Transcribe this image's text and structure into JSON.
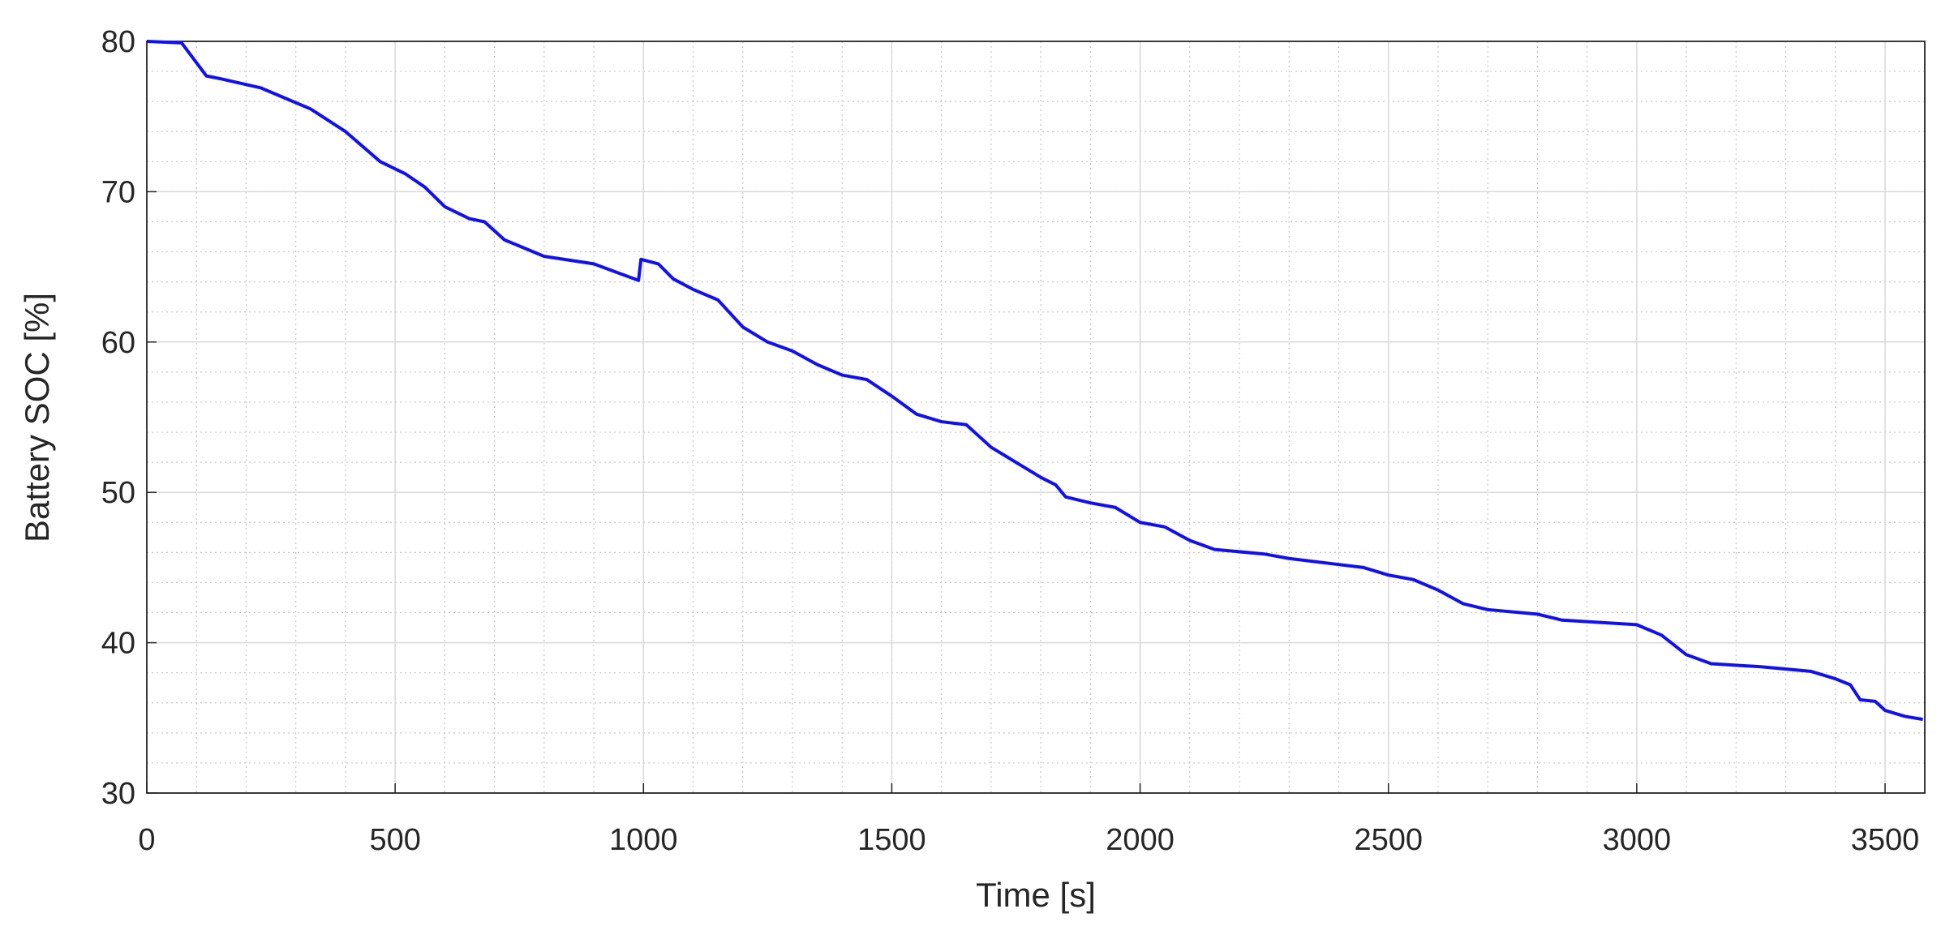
{
  "chart_data": {
    "type": "line",
    "x_label": "Time [s]",
    "y_label": "Battery SOC [%]",
    "x": [
      0,
      70,
      120,
      150,
      230,
      330,
      400,
      470,
      520,
      560,
      600,
      650,
      680,
      720,
      800,
      900,
      990,
      995,
      1030,
      1060,
      1100,
      1150,
      1200,
      1250,
      1300,
      1350,
      1400,
      1450,
      1500,
      1550,
      1600,
      1650,
      1700,
      1750,
      1800,
      1830,
      1850,
      1900,
      1950,
      2000,
      2050,
      2100,
      2150,
      2250,
      2300,
      2400,
      2450,
      2500,
      2550,
      2600,
      2650,
      2700,
      2800,
      2850,
      2950,
      3000,
      3050,
      3100,
      3150,
      3250,
      3350,
      3400,
      3430,
      3450,
      3480,
      3500,
      3540,
      3576
    ],
    "series": [
      {
        "color": "#1010f0",
        "values": [
          80,
          79.9,
          77.7,
          77.5,
          76.9,
          75.5,
          74,
          72,
          71.2,
          70.3,
          69,
          68.2,
          68,
          66.8,
          65.7,
          65.2,
          64.1,
          65.5,
          65.2,
          64.2,
          63.5,
          62.8,
          61,
          60,
          59.4,
          58.5,
          57.8,
          57.5,
          56.4,
          55.2,
          54.7,
          54.5,
          53,
          52,
          51,
          50.5,
          49.7,
          49.3,
          49,
          48,
          47.7,
          46.8,
          46.2,
          45.9,
          45.6,
          45.2,
          45,
          44.5,
          44.2,
          43.5,
          42.6,
          42.2,
          41.9,
          41.5,
          41.3,
          41.2,
          40.5,
          39.2,
          38.6,
          38.4,
          38.1,
          37.6,
          37.2,
          36.2,
          36.1,
          35.5,
          35.1,
          34.9
        ]
      }
    ],
    "xlim": [
      0,
      3580
    ],
    "ylim": [
      30,
      80
    ],
    "xticks": [
      0,
      500,
      1000,
      1500,
      2000,
      2500,
      3000,
      3500
    ],
    "yticks": [
      30,
      40,
      50,
      60,
      70,
      80
    ],
    "grid": true,
    "minor_grid": true
  }
}
